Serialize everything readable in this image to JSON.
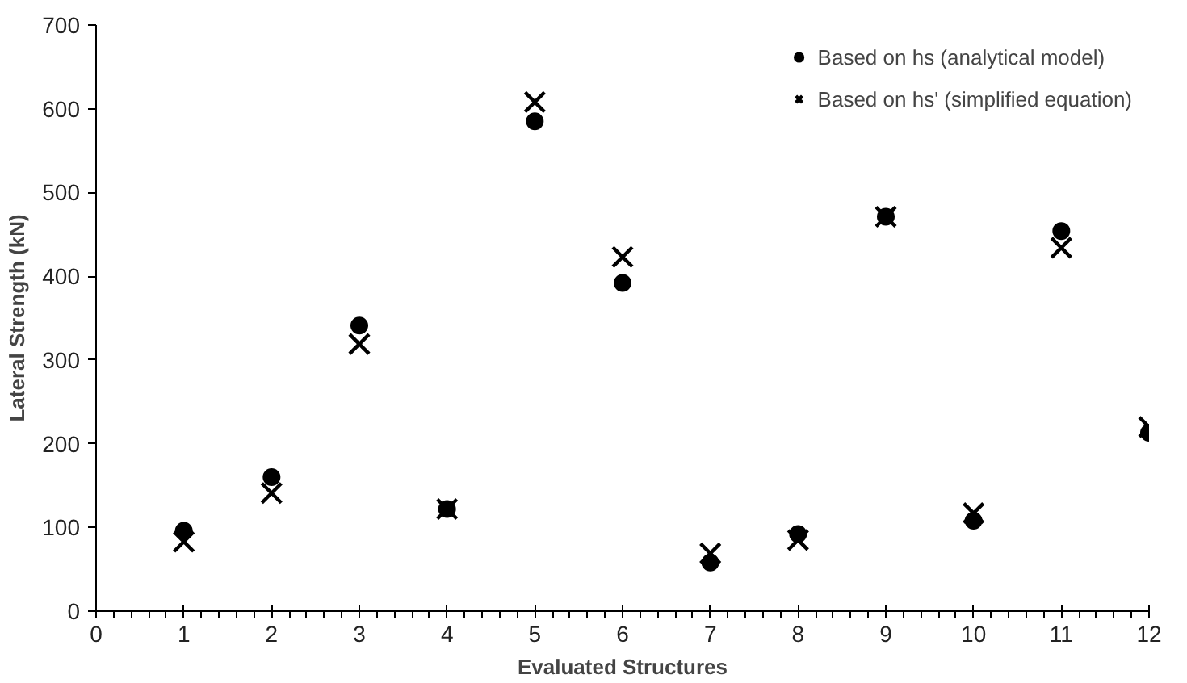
{
  "chart_data": {
    "type": "scatter",
    "xlabel": "Evaluated Structures",
    "ylabel": "Lateral Strength (kN)",
    "x": [
      1,
      2,
      3,
      4,
      5,
      6,
      7,
      8,
      9,
      10,
      11,
      12
    ],
    "series": [
      {
        "name": "Based on hs (analytical model)",
        "color": "#000000",
        "marker": "circle",
        "values": [
          96,
          160,
          341,
          122,
          585,
          392,
          58,
          92,
          471,
          108,
          454,
          213
        ]
      },
      {
        "name": "Based on hs' (simplified equation)",
        "color": "#000000",
        "marker": "cross",
        "values": [
          83,
          141,
          319,
          122,
          608,
          423,
          69,
          85,
          471,
          117,
          434,
          220
        ]
      }
    ],
    "xlim": [
      0,
      12
    ],
    "xticks": [
      0,
      1,
      2,
      3,
      4,
      5,
      6,
      7,
      8,
      9,
      10,
      11,
      12
    ],
    "ylim": [
      0,
      700
    ],
    "yticks": [
      0,
      100,
      200,
      300,
      400,
      500,
      600,
      700
    ],
    "grid": false,
    "legend": "top right"
  }
}
